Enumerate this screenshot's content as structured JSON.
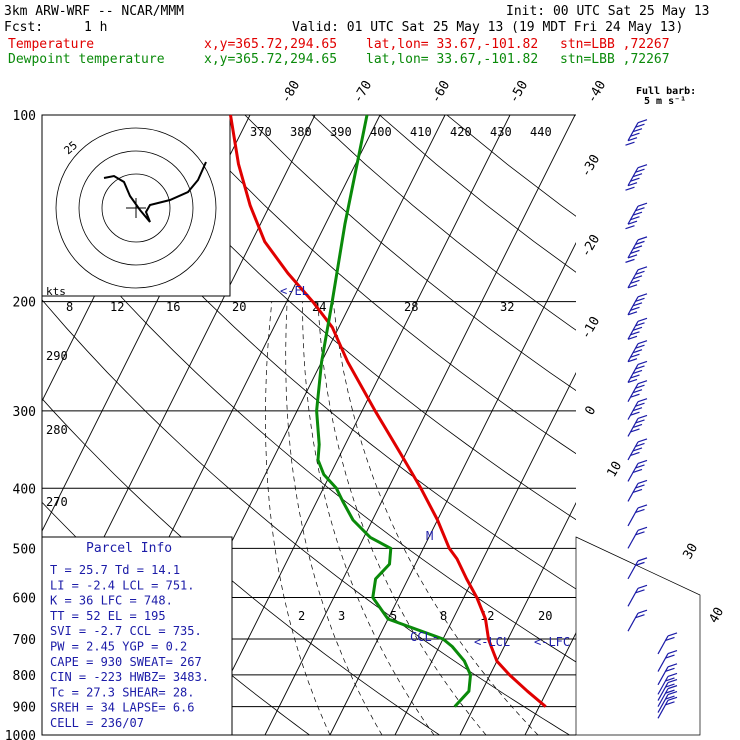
{
  "header": {
    "model": "3km ARW-WRF -- NCAR/MMM",
    "init": "Init: 00 UTC Sat 25 May 13",
    "fcst_label": "Fcst:",
    "fcst_value": "1 h",
    "valid": "Valid: 01 UTC Sat 25 May 13 (19 MDT Fri 24 May 13)",
    "temp_label": "Temperature",
    "dew_label": "Dewpoint temperature",
    "xy": "x,y=365.72,294.65",
    "latlon": "lat,lon= 33.67,-101.82",
    "stn": "stn=LBB ,72267"
  },
  "legend": {
    "barb_line1": "Full barb:",
    "barb_line2": "5 m s⁻¹"
  },
  "colors": {
    "temperature": "#e00000",
    "dewpoint": "#0a8a0a",
    "wind": "#1c1ca8",
    "index_text": "#1c1ca8",
    "grid": "#000000"
  },
  "parcel": {
    "title": "Parcel Info",
    "rows": [
      "T  =   25.7  Td =  14.1",
      "LI =   -2.4  LCL =  751.",
      "K  =     36  LFC =  748.",
      "TT =     52  EL  =  195",
      "SVI =  -2.7  CCL =  735.",
      "PW =   2.45  YGP =   0.2",
      "CAPE =  930  SWEAT=  267",
      "CIN =  -223  HWBZ= 3483.",
      "Tc =   27.3  SHEAR=  28.",
      "SREH =   34  LAPSE=  6.6",
      "CELL = 236/07"
    ]
  },
  "hodograph": {
    "kts_label": "kts",
    "ring_label": "25"
  },
  "chart_data": {
    "type": "line",
    "title": "",
    "y_axis": {
      "scale": "log",
      "range": [
        1000,
        100
      ],
      "ticks": [
        100,
        200,
        300,
        400,
        500,
        600,
        700,
        800,
        900,
        1000
      ]
    },
    "temperature_axis": {
      "range": [
        -40,
        40
      ],
      "isotherms_top": [
        -80,
        -70,
        -60,
        -50,
        -40
      ],
      "isotherms_right": [
        -30,
        -20,
        -10,
        0,
        10,
        20,
        30,
        40
      ]
    },
    "dry_adiabats_K": [
      370,
      380,
      390,
      400,
      410,
      420,
      430,
      440
    ],
    "moist_adiabats_left": [
      290,
      280,
      270
    ],
    "mixing_ratio_labels": [
      "2",
      "3",
      "5",
      "8",
      "12",
      "20"
    ],
    "upper_theta_e_labels": [
      "8",
      "12",
      "16",
      "20",
      "24",
      "28",
      "32"
    ],
    "series": [
      {
        "name": "Temperature",
        "p": [
          900,
          850,
          800,
          760,
          720,
          700,
          650,
          600,
          560,
          520,
          500,
          450,
          400,
          350,
          300,
          250,
          220,
          200,
          180,
          160,
          140,
          120,
          100
        ],
        "t": [
          31,
          27,
          23,
          20,
          18,
          17,
          15,
          12,
          9,
          6,
          4,
          0,
          -5,
          -11,
          -18,
          -26,
          -31,
          -36,
          -42,
          -48,
          -53,
          -58,
          -63
        ]
      },
      {
        "name": "Dewpoint temperature",
        "p": [
          900,
          850,
          800,
          760,
          720,
          700,
          650,
          600,
          560,
          530,
          500,
          480,
          450,
          420,
          400,
          380,
          360,
          340,
          300,
          250,
          200,
          150,
          100
        ],
        "t": [
          17,
          18,
          17,
          15,
          12,
          10,
          0,
          -4,
          -5,
          -4,
          -5,
          -9,
          -13,
          -16,
          -18,
          -21,
          -23,
          -24,
          -27,
          -30,
          -33,
          -37,
          -42
        ]
      }
    ],
    "annotations": [
      {
        "text": "<-EL",
        "p": 195
      },
      {
        "text": "M",
        "p": 500
      },
      {
        "text": "CCL-",
        "p": 735
      },
      {
        "text": "<-LCL",
        "p": 751
      },
      {
        "text": "<-LFC",
        "p": 748
      }
    ],
    "wind_barbs": {
      "p": [
        110,
        130,
        150,
        170,
        190,
        210,
        230,
        250,
        270,
        290,
        310,
        330,
        360,
        390,
        420,
        460,
        500,
        560,
        620,
        680,
        740,
        790,
        830,
        860,
        880,
        900,
        920,
        940
      ],
      "speed_ms": [
        30,
        30,
        28,
        28,
        26,
        26,
        26,
        24,
        24,
        22,
        22,
        20,
        18,
        16,
        14,
        12,
        10,
        10,
        8,
        8,
        8,
        8,
        10,
        10,
        10,
        10,
        10,
        10
      ]
    }
  }
}
